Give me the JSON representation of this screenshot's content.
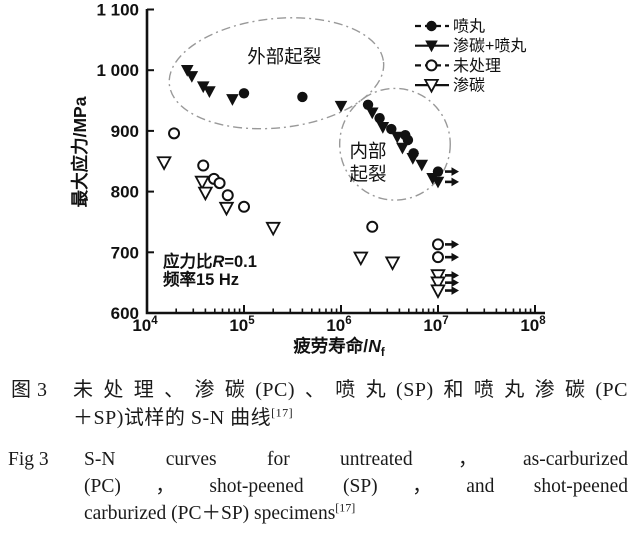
{
  "colors": {
    "ink": "#111111",
    "region_stroke": "#999999",
    "background": "#ffffff"
  },
  "chart_data": {
    "type": "scatter",
    "title": "",
    "x_scale": "log",
    "xlabel": "疲劳寿命/N_f",
    "xlabel_parts": {
      "prefix": "疲劳寿命/",
      "var": "N",
      "sub": "f"
    },
    "ylabel": "最大应力/MPa",
    "xlim": [
      10000,
      130000000
    ],
    "ylim": [
      600,
      1100
    ],
    "grid": false,
    "legend_position": "top-right",
    "x_ticks": [
      {
        "v": 10000,
        "base": "10",
        "exp": "4"
      },
      {
        "v": 100000,
        "base": "10",
        "exp": "5"
      },
      {
        "v": 1000000,
        "base": "10",
        "exp": "6"
      },
      {
        "v": 10000000,
        "base": "10",
        "exp": "7"
      },
      {
        "v": 100000000,
        "base": "10",
        "exp": "8"
      }
    ],
    "y_ticks": [
      {
        "v": 1100,
        "label": "1 100"
      },
      {
        "v": 1000,
        "label": "1 000"
      },
      {
        "v": 900,
        "label": "900"
      },
      {
        "v": 800,
        "label": "800"
      },
      {
        "v": 700,
        "label": "700"
      },
      {
        "v": 600,
        "label": "600"
      }
    ],
    "series": [
      {
        "id": "sp",
        "name": "喷丸",
        "marker": "filled-circle",
        "line": "dashed",
        "points": [
          [
            100000,
            962
          ],
          [
            400000,
            956
          ],
          [
            1900000,
            943
          ],
          [
            2500000,
            921
          ],
          [
            3300000,
            903
          ],
          [
            4600000,
            893
          ],
          [
            4900000,
            885
          ],
          [
            5600000,
            863
          ]
        ],
        "runouts": [
          [
            10000000,
            833
          ]
        ],
        "trend": [
          [
            26000,
            995
          ],
          [
            40000,
            976
          ],
          [
            70000,
            964
          ],
          [
            150000,
            958
          ],
          [
            400000,
            953
          ],
          [
            1000000,
            948
          ],
          [
            1600000,
            944
          ],
          [
            2400000,
            926
          ],
          [
            3500000,
            900
          ],
          [
            5000000,
            874
          ],
          [
            7000000,
            850
          ],
          [
            9000000,
            831
          ],
          [
            10500000,
            820
          ]
        ]
      },
      {
        "id": "pc-sp",
        "name": "渗碳+喷丸",
        "marker": "filled-triangle",
        "line": "solid",
        "points": [
          [
            26000,
            1000
          ],
          [
            29000,
            990
          ],
          [
            38000,
            973
          ],
          [
            44000,
            965
          ],
          [
            76000,
            952
          ],
          [
            1000000,
            941
          ],
          [
            2100000,
            930
          ],
          [
            2700000,
            906
          ],
          [
            3800000,
            890
          ],
          [
            4300000,
            872
          ],
          [
            5500000,
            855
          ],
          [
            6800000,
            844
          ],
          [
            8800000,
            822
          ]
        ],
        "runouts": [
          [
            10000000,
            816
          ]
        ],
        "trend": [
          [
            26000,
            988
          ],
          [
            40000,
            968
          ],
          [
            70000,
            954
          ],
          [
            150000,
            947
          ],
          [
            400000,
            942
          ],
          [
            1000000,
            939
          ],
          [
            1600000,
            936
          ],
          [
            2400000,
            920
          ],
          [
            3500000,
            895
          ],
          [
            5000000,
            868
          ],
          [
            7000000,
            845
          ],
          [
            9000000,
            825
          ],
          [
            10500000,
            814
          ]
        ]
      },
      {
        "id": "untreated",
        "name": "未处理",
        "marker": "open-circle",
        "line": "dashed",
        "points": [
          [
            19000,
            896
          ],
          [
            38000,
            843
          ],
          [
            49000,
            821
          ],
          [
            56000,
            814
          ],
          [
            68000,
            794
          ],
          [
            100000,
            775
          ],
          [
            2100000,
            742
          ]
        ],
        "runouts": [
          [
            10000000,
            713
          ],
          [
            10000000,
            692
          ]
        ],
        "trend": [
          [
            18000,
            898
          ],
          [
            30000,
            862
          ],
          [
            50000,
            826
          ],
          [
            80000,
            798
          ],
          [
            150000,
            775
          ],
          [
            400000,
            758
          ],
          [
            1000000,
            748
          ],
          [
            3000000,
            735
          ],
          [
            10000000,
            716
          ]
        ]
      },
      {
        "id": "pc",
        "name": "渗碳",
        "marker": "open-triangle",
        "line": "solid",
        "points": [
          [
            15000,
            848
          ],
          [
            37000,
            816
          ],
          [
            40000,
            798
          ],
          [
            66000,
            773
          ],
          [
            200000,
            740
          ],
          [
            1600000,
            691
          ],
          [
            3400000,
            683
          ]
        ],
        "runouts": [
          [
            10000000,
            662
          ],
          [
            10000000,
            650
          ],
          [
            10000000,
            637
          ]
        ],
        "trend": [
          [
            14000,
            856
          ],
          [
            25000,
            830
          ],
          [
            50000,
            800
          ],
          [
            100000,
            772
          ],
          [
            250000,
            740
          ],
          [
            600000,
            716
          ],
          [
            1500000,
            698
          ],
          [
            4000000,
            681
          ],
          [
            10000000,
            666
          ]
        ]
      }
    ],
    "regions": [
      {
        "label_lines": [
          "外部起裂"
        ],
        "label_x": 260000,
        "label_y": [
          1022
        ],
        "cx": 216000,
        "cy": 995,
        "rx_decades": 1.11,
        "ry_mpa": 90,
        "rotate": -6
      },
      {
        "label_lines": [
          "内部",
          "起裂"
        ],
        "label_x": 1900000,
        "label_y": [
          866,
          828
        ],
        "cx": 3600000,
        "cy": 878,
        "rx_decades": 0.57,
        "ry_mpa": 92,
        "rotate": 0
      }
    ],
    "notes": [
      {
        "lines": [
          "应力比R=0.1",
          "频率15 Hz"
        ],
        "x": 14600,
        "y": [
          676,
          646
        ]
      }
    ]
  },
  "caption": {
    "zh": {
      "fig_label": "图 3",
      "line1": "未处理、渗碳(PC)、喷丸(SP)和喷丸渗碳(PC",
      "line2": "＋SP)试样的 S-N 曲线",
      "ref_sup": "[17]"
    },
    "en": {
      "fig_label": "Fig 3",
      "line1": "S-N curves for untreated，as-carburized",
      "line2": "(PC)，shot-peened (SP)，and shot-peened",
      "line3": "carburized (PC＋SP) specimens",
      "ref_sup": "[17]"
    }
  }
}
